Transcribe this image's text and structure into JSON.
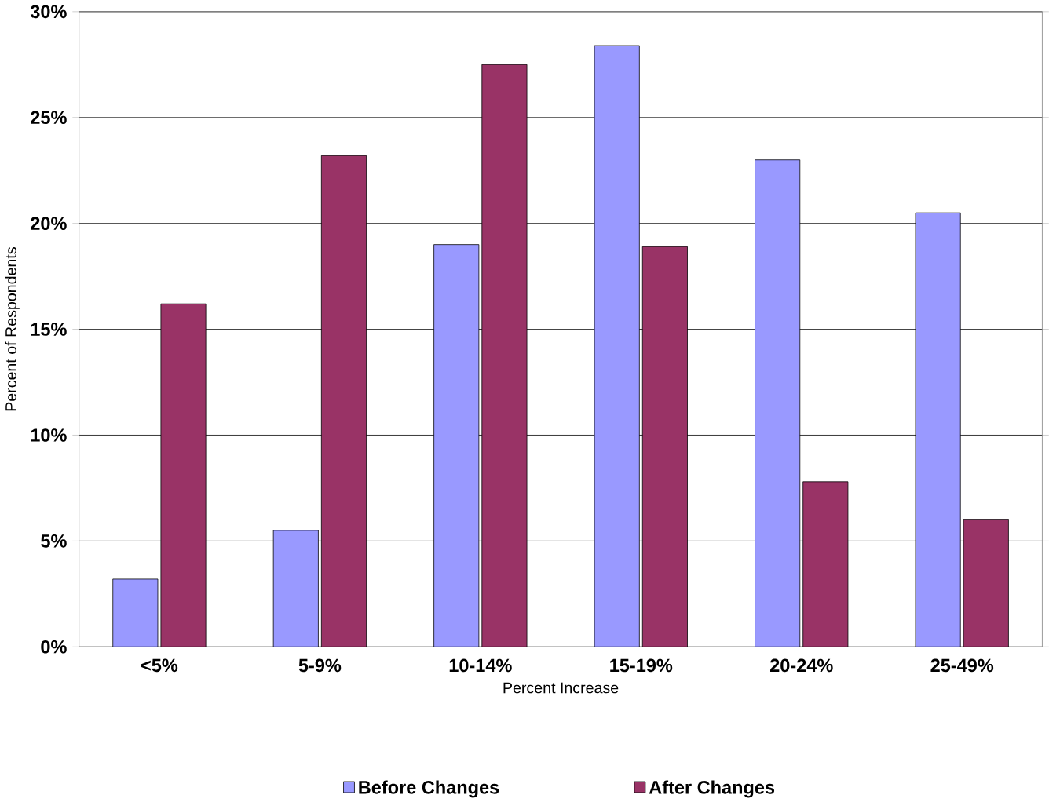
{
  "chart_data": {
    "type": "bar",
    "xlabel": "Percent Increase",
    "ylabel": "Percent of Respondents",
    "categories": [
      "<5%",
      "5-9%",
      "10-14%",
      "15-19%",
      "20-24%",
      "25-49%"
    ],
    "series": [
      {
        "name": "Before Changes",
        "color": "#9999ff",
        "values": [
          3.2,
          5.5,
          19.0,
          28.4,
          23.0,
          20.5
        ]
      },
      {
        "name": "After Changes",
        "color": "#993366",
        "values": [
          16.2,
          23.2,
          27.5,
          18.9,
          7.8,
          6.0
        ]
      }
    ],
    "ylim": [
      0,
      30
    ],
    "yticks": [
      {
        "value": 0,
        "label": "0%"
      },
      {
        "value": 5,
        "label": "5%"
      },
      {
        "value": 10,
        "label": "10%"
      },
      {
        "value": 15,
        "label": "15%"
      },
      {
        "value": 20,
        "label": "20%"
      },
      {
        "value": 25,
        "label": "25%"
      },
      {
        "value": 30,
        "label": "30%"
      }
    ],
    "grid": "y",
    "legend": "bottom"
  }
}
